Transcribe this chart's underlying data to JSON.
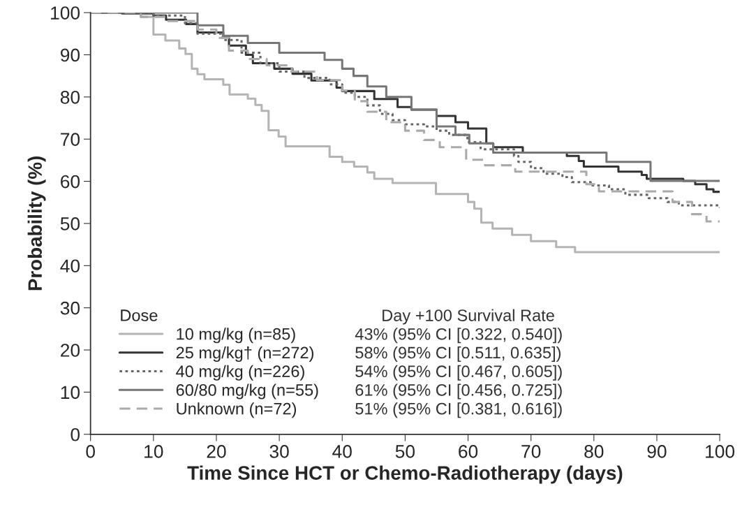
{
  "chart_data": {
    "type": "step",
    "xlabel": "Time Since HCT or Chemo-Radiotherapy (days)",
    "ylabel": "Probability (%)",
    "legend_title": "Dose",
    "legend": "bottom left",
    "grid": false,
    "xlim": [
      0,
      100
    ],
    "ylim": [
      0,
      100
    ],
    "xticks": [
      0,
      10,
      20,
      30,
      40,
      50,
      60,
      70,
      80,
      90,
      100
    ],
    "yticks": [
      0,
      10,
      20,
      30,
      40,
      50,
      60,
      70,
      80,
      90,
      100
    ],
    "series": [
      {
        "name": "10 mg/kg (n=85)",
        "color": "#b4b4b4",
        "line_style": "solid",
        "x": [
          0,
          8,
          10,
          11.9,
          14.1,
          15.1,
          16.1,
          17,
          18.1,
          21.1,
          22.1,
          25,
          26.2,
          27.2,
          28.3,
          29.9,
          31,
          38,
          40,
          41.9,
          44,
          45.1,
          48,
          54.9,
          60,
          61,
          62.1,
          63.9,
          67,
          70,
          74,
          77,
          88.9,
          100
        ],
        "values": [
          100,
          99,
          94.8,
          93.4,
          91.5,
          90.2,
          86.7,
          85.4,
          84.2,
          82.9,
          80.6,
          79.6,
          78.1,
          76.7,
          72.1,
          70.6,
          68.3,
          65.8,
          64.6,
          63.5,
          62.1,
          60.6,
          59.6,
          57,
          55.1,
          53.5,
          50.2,
          48.8,
          47.3,
          45.8,
          44.4,
          43.2,
          43.2,
          43.2
        ]
      },
      {
        "name": "25 mg/kg† (n=272)",
        "color": "#333333",
        "line_style": "solid",
        "x": [
          0,
          5,
          10,
          12,
          15.2,
          17,
          21.1,
          22,
          24.7,
          25.8,
          29.2,
          32.1,
          35.1,
          39.1,
          40,
          45.1,
          48.8,
          51,
          55,
          58,
          60,
          62.9,
          64,
          68.7,
          75.7,
          77.6,
          78.4,
          83.9,
          87.6,
          88.4,
          94.2,
          96.1,
          97.9,
          99,
          100
        ],
        "values": [
          100,
          99.8,
          99.3,
          98.3,
          97.3,
          95.3,
          94.4,
          92.2,
          90,
          88,
          86.7,
          85.5,
          83.9,
          82.2,
          81.4,
          79.5,
          77.6,
          77,
          75.5,
          74,
          72.5,
          69,
          68.1,
          66.8,
          66,
          64.8,
          63.5,
          62.3,
          61.5,
          60.6,
          60.1,
          59.3,
          58.1,
          57.5,
          57.5
        ]
      },
      {
        "name": "40 mg/kg (n=226)",
        "color": "#666666",
        "line_style": "dotted",
        "x": [
          0,
          10,
          15,
          17,
          21,
          24,
          27,
          30,
          34,
          38,
          40,
          42,
          44,
          46,
          48,
          50,
          53,
          55,
          57,
          59.9,
          62,
          67.3,
          68,
          70,
          72,
          75,
          76.5,
          79.5,
          82.4,
          85,
          88.7,
          91.7,
          93.5,
          100
        ],
        "values": [
          100,
          99.3,
          97.5,
          95,
          93.5,
          90.5,
          88,
          86,
          84.5,
          83,
          81,
          80,
          78,
          76,
          74.5,
          73.5,
          73,
          72,
          71,
          69.3,
          67.6,
          66,
          64.6,
          63.1,
          61.8,
          61,
          59.8,
          59,
          58.1,
          56.8,
          56,
          55.1,
          54.3,
          53.7
        ]
      },
      {
        "name": "60/80 mg/kg (n=55)",
        "color": "#777777",
        "line_style": "solid",
        "x": [
          0,
          17,
          21.1,
          25,
          30,
          37.2,
          40,
          41.8,
          44,
          47,
          51,
          55,
          58,
          60.2,
          64,
          82,
          89,
          100
        ],
        "values": [
          100,
          97,
          94.5,
          92.8,
          90.5,
          88.8,
          86.7,
          85,
          82.5,
          80,
          77,
          73,
          71,
          69,
          66.8,
          64.6,
          60.1,
          60.1
        ]
      },
      {
        "name": "Unknown (n=72)",
        "color": "#aaaaaa",
        "line_style": "dashed",
        "x": [
          0,
          8,
          12,
          17,
          20,
          22,
          25,
          28,
          32,
          36,
          40,
          42,
          44,
          47,
          50,
          53,
          55.5,
          59.7,
          62.7,
          67.5,
          78.8,
          80.8,
          92.5,
          95.6,
          97.9,
          100
        ],
        "values": [
          100,
          99,
          98,
          96,
          94,
          91,
          89,
          87.5,
          86,
          84,
          81.5,
          79,
          76.5,
          74,
          72,
          69.8,
          68.1,
          65.1,
          63.8,
          62.3,
          59.3,
          57.6,
          55.1,
          52.2,
          50.5,
          50.5
        ]
      }
    ],
    "annotations": [
      "Day +100 Survival Rate",
      "43% (95% CI [0.322, 0.540])",
      "58% (95% CI [0.511, 0.635])",
      "54% (95% CI [0.467, 0.605])",
      "61% (95% CI [0.456, 0.725])",
      "51% (95% CI [0.381, 0.616])"
    ]
  }
}
